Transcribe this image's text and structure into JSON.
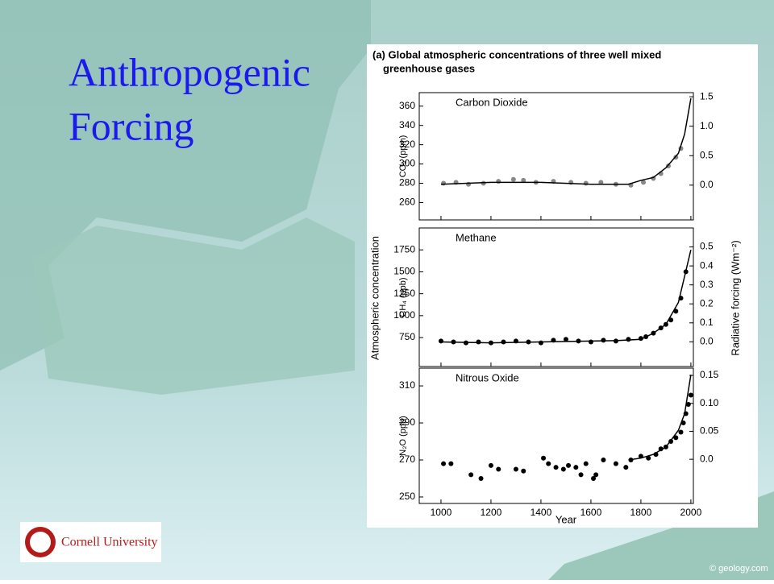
{
  "slide": {
    "title_lines": [
      "Anthropogenic",
      "Forcing"
    ],
    "logo_text": "Cornell University",
    "watermark": "© geology.com"
  },
  "figure": {
    "title_lines": [
      "(a) Global atmospheric concentrations of three well mixed",
      "greenhouse gases"
    ],
    "ylabel": "Atmospheric concentration",
    "y2label": "Radiative forcing  (Wm⁻²)",
    "xlabel": "Year"
  },
  "chart_data": [
    {
      "type": "scatter",
      "title": "Carbon Dioxide",
      "ylabel": "CO₂  (ppm)",
      "xlim": [
        913,
        2010
      ],
      "xticks": [
        1000,
        1200,
        1400,
        1600,
        1800,
        2000
      ],
      "ylim": [
        242,
        374
      ],
      "yticks": [
        260,
        280,
        300,
        320,
        340,
        360
      ],
      "y2lim": [
        -0.59,
        1.57
      ],
      "y2ticks": [
        {
          "value": 0,
          "label": "0.0"
        },
        0.5,
        {
          "value": 1,
          "label": "1.0"
        },
        1.5
      ],
      "series": [
        {
          "style": "markers",
          "color": "#888888",
          "x": [
            1010,
            1060,
            1110,
            1170,
            1230,
            1290,
            1330,
            1380,
            1450,
            1520,
            1580,
            1640,
            1700,
            1760,
            1810,
            1850,
            1880,
            1910,
            1940,
            1960
          ],
          "values": [
            280,
            281,
            279,
            280,
            282,
            284,
            283,
            281,
            282,
            281,
            280,
            281,
            279,
            278,
            281,
            285,
            290,
            298,
            307,
            316
          ]
        },
        {
          "style": "line",
          "color": "#000000",
          "x": [
            1000,
            1200,
            1400,
            1600,
            1750,
            1800,
            1850,
            1900,
            1950,
            1975,
            2000
          ],
          "values": [
            279,
            281,
            281,
            279,
            279,
            283,
            286,
            296,
            311,
            331,
            368
          ]
        }
      ]
    },
    {
      "type": "scatter",
      "title": "Methane",
      "ylabel": "CH₄  (ppb)",
      "xlim": [
        913,
        2010
      ],
      "xticks": [
        1000,
        1200,
        1400,
        1600,
        1800,
        2000
      ],
      "ylim": [
        420,
        2000
      ],
      "yticks": [
        750,
        1000,
        1250,
        1500,
        1750
      ],
      "y2lim": [
        -0.13,
        0.6
      ],
      "y2ticks": [
        {
          "value": 0,
          "label": "0.0"
        },
        0.1,
        0.2,
        0.3,
        0.4,
        0.5
      ],
      "series": [
        {
          "style": "markers",
          "color": "#000000",
          "x": [
            1000,
            1050,
            1100,
            1150,
            1200,
            1250,
            1300,
            1350,
            1400,
            1450,
            1500,
            1550,
            1600,
            1650,
            1700,
            1750,
            1800,
            1820,
            1850,
            1880,
            1900,
            1920,
            1940,
            1960,
            1980
          ],
          "values": [
            710,
            700,
            690,
            700,
            690,
            700,
            710,
            700,
            690,
            720,
            730,
            710,
            700,
            720,
            710,
            730,
            740,
            760,
            800,
            860,
            900,
            950,
            1050,
            1200,
            1500
          ]
        },
        {
          "style": "line",
          "color": "#000000",
          "x": [
            1000,
            1200,
            1400,
            1600,
            1700,
            1800,
            1850,
            1900,
            1950,
            1975,
            2000
          ],
          "values": [
            700,
            690,
            700,
            710,
            715,
            730,
            800,
            900,
            1150,
            1450,
            1750
          ]
        }
      ]
    },
    {
      "type": "scatter",
      "title": "Nitrous Oxide",
      "ylabel": "N₂O  (ppb)",
      "xlim": [
        913,
        2010
      ],
      "xticks": [
        1000,
        1200,
        1400,
        1600,
        1800,
        2000
      ],
      "ylim": [
        246.5,
        319.6
      ],
      "yticks": [
        250,
        270,
        290,
        310
      ],
      "y2lim": [
        -0.079,
        0.163
      ],
      "y2ticks": [
        {
          "value": 0,
          "label": "0.0"
        },
        0.05,
        {
          "value": 0.1,
          "label": "0.10"
        },
        0.15
      ],
      "series": [
        {
          "style": "markers",
          "color": "#000000",
          "x": [
            1010,
            1040,
            1120,
            1160,
            1200,
            1230,
            1300,
            1330,
            1410,
            1430,
            1460,
            1490,
            1510,
            1540,
            1560,
            1580,
            1610,
            1620,
            1650,
            1700,
            1740,
            1760,
            1800,
            1830,
            1860,
            1880,
            1900,
            1920,
            1940,
            1960,
            1970,
            1980,
            1990,
            2000
          ],
          "values": [
            268,
            268,
            262,
            260,
            267,
            265,
            265,
            264,
            271,
            268,
            266,
            265,
            267,
            266,
            262,
            268,
            260,
            262,
            270,
            268,
            266,
            270,
            272,
            271,
            273,
            276,
            277,
            280,
            282,
            285,
            290,
            295,
            300,
            305
          ]
        },
        {
          "style": "line",
          "color": "#000000",
          "x": [
            1750,
            1800,
            1850,
            1900,
            1950,
            1975,
            2000
          ],
          "values": [
            270,
            271,
            273,
            277,
            286,
            295,
            316
          ]
        }
      ]
    }
  ]
}
